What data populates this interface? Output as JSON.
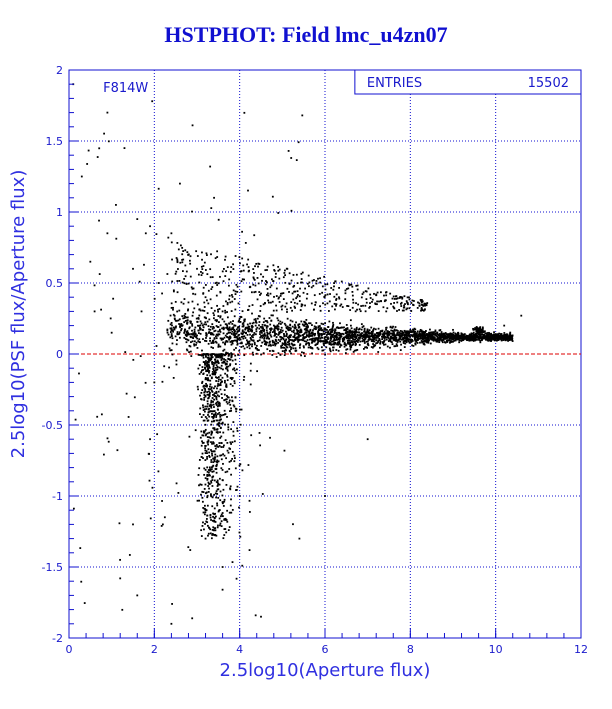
{
  "title": "HSTPHOT: Field lmc_u4zn07",
  "chart_data": {
    "type": "scatter",
    "xlabel": "2.5log10(Aperture flux)",
    "ylabel": "2.5log10(PSF flux/Aperture flux)",
    "xlim": [
      0,
      12
    ],
    "ylim": [
      -2,
      2
    ],
    "x_ticks": [
      "0",
      "2",
      "4",
      "6",
      "8",
      "10",
      "12"
    ],
    "y_ticks": [
      "-2",
      "-1.5",
      "-1",
      "-0.5",
      "0",
      "0.5",
      "1",
      "1.5",
      "2"
    ],
    "grid": true,
    "filter_label": "F814W",
    "stats": {
      "label": "ENTRIES",
      "value": "15502"
    },
    "reference_line": {
      "y": 0,
      "style": "dashed",
      "color": "#dd0000"
    },
    "marker_color": "#000000",
    "axis_color": "#1010d0",
    "series": [
      {
        "description_points": [
          [
            0.1,
            1.9
          ],
          [
            0.3,
            1.25
          ],
          [
            0.5,
            0.65
          ],
          [
            0.6,
            0.3
          ],
          [
            0.9,
            0.85
          ],
          [
            0.9,
            1.7
          ],
          [
            1.0,
            0.15
          ],
          [
            1.1,
            1.05
          ],
          [
            1.3,
            1.45
          ],
          [
            1.5,
            0.6
          ],
          [
            1.6,
            0.95
          ],
          [
            1.7,
            0.3
          ],
          [
            1.8,
            0.85
          ],
          [
            1.9,
            0.9
          ],
          [
            1.95,
            1.78
          ],
          [
            2.1,
            0.5
          ],
          [
            2.0,
            -0.2
          ],
          [
            1.9,
            -0.6
          ],
          [
            2.2,
            -1.2
          ],
          [
            1.5,
            -1.2
          ],
          [
            1.2,
            -1.58
          ],
          [
            1.6,
            -1.7
          ],
          [
            2.6,
            1.2
          ],
          [
            3.4,
            1.1
          ],
          [
            2.4,
            0.85
          ],
          [
            2.8,
            0.7
          ],
          [
            3.0,
            0.6
          ],
          [
            3.2,
            0.4
          ],
          [
            3.6,
            0.3
          ],
          [
            4.0,
            0.25
          ],
          [
            4.6,
            0.2
          ],
          [
            5.2,
            0.18
          ],
          [
            6.0,
            0.17
          ],
          [
            7.0,
            0.16
          ],
          [
            8.0,
            0.17
          ],
          [
            9.0,
            0.17
          ],
          [
            9.7,
            0.18
          ],
          [
            10.2,
            0.2
          ],
          [
            10.6,
            0.27
          ],
          [
            3.5,
            -0.5
          ],
          [
            3.2,
            -0.3
          ],
          [
            3.8,
            -0.4
          ],
          [
            4.0,
            -1.0
          ],
          [
            3.2,
            -1.3
          ],
          [
            3.6,
            -1.5
          ],
          [
            2.4,
            -1.9
          ],
          [
            4.5,
            -1.85
          ],
          [
            5.4,
            -1.3
          ],
          [
            6.0,
            -1.0
          ],
          [
            7.0,
            -0.6
          ]
        ]
      }
    ]
  }
}
